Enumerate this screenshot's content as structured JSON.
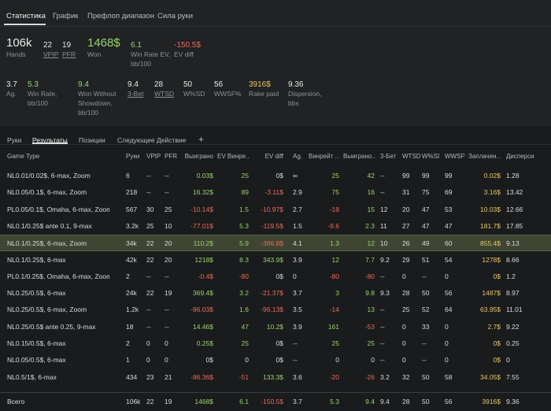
{
  "main_tabs": [
    "Статистика",
    "График",
    "Префлоп диапазон",
    "Сила руки"
  ],
  "stats_row1": {
    "hands": {
      "value": "106k",
      "label": "Hands"
    },
    "vpip": {
      "value": "22",
      "label": "VPIP"
    },
    "pfr": {
      "value": "19",
      "label": "PFR"
    },
    "won": {
      "value": "1468$",
      "label": "Won"
    },
    "wr_ev": {
      "value": "6.1",
      "label1": "Win Rate EV,",
      "label2": "bb/100"
    },
    "ev_diff": {
      "value": "-150.5$",
      "label": "EV diff"
    }
  },
  "stats_row2": {
    "ag": {
      "value": "3.7",
      "label": "Ag."
    },
    "wr": {
      "value": "5.3",
      "label1": "Win Rate,",
      "label2": "bb/100"
    },
    "wwsd": {
      "value": "9.4",
      "label1": "Won Without",
      "label2": "Showdown,",
      "label3": "bb/100"
    },
    "bet3": {
      "value": "9.4",
      "label": "3-Bet"
    },
    "wtsd": {
      "value": "28",
      "label": "WTSD"
    },
    "wsd": {
      "value": "50",
      "label": "W%SD"
    },
    "wwsf": {
      "value": "56",
      "label": "WWSF%"
    },
    "rake": {
      "value": "3916$",
      "label": "Rake paid"
    },
    "disp": {
      "value": "9.36",
      "label1": "Dispersion,",
      "label2": "bbs"
    }
  },
  "sub_tabs": [
    "Руки",
    "Результаты",
    "Позиции",
    "Следующее Действие",
    "+"
  ],
  "columns": [
    "Game Type",
    "Руки",
    "VPIP",
    "PFR",
    "Выиграно",
    "EV Винре...",
    "EV diff",
    "Ag.",
    "Винрейт ...",
    "Выиграно...",
    "3-Бет",
    "WTSD",
    "W%SD",
    "WWSF%",
    "Заплачен...",
    "Дисперси..."
  ],
  "rows": [
    [
      "NL0.01/0.02$, 6-max, Zoom",
      "6",
      "--",
      "--",
      "0.03$",
      "25",
      "0$",
      "∞",
      "25",
      "42",
      "--",
      "99",
      "99",
      "99",
      "0.02$",
      "1.28"
    ],
    [
      "NL0.05/0.1$, 6-max, Zoom",
      "218",
      "--",
      "--",
      "16.32$",
      "89",
      "-3.11$",
      "2.9",
      "75",
      "16",
      "--",
      "31",
      "75",
      "69",
      "3.16$",
      "13.42"
    ],
    [
      "PL0.05/0.1$, Omaha, 6-max, Zoom",
      "567",
      "30",
      "25",
      "-10.14$",
      "1.5",
      "-10.97$",
      "2.7",
      "-18",
      "15",
      "12",
      "20",
      "47",
      "53",
      "10.03$",
      "12.66"
    ],
    [
      "NL0.1/0.25$ ante 0.1, 9-max",
      "3.2k",
      "25",
      "10",
      "-77.01$",
      "5.3",
      "-119.5$",
      "1.5",
      "-9.6",
      "2.3",
      "11",
      "27",
      "47",
      "47",
      "181.7$",
      "17.85"
    ],
    [
      "NL0.1/0.25$, 6-max, Zoom",
      "34k",
      "22",
      "20",
      "110.2$",
      "5.9",
      "-386.8$",
      "4.1",
      "1.3",
      "12",
      "10",
      "26",
      "49",
      "60",
      "855.4$",
      "9.13"
    ],
    [
      "NL0.1/0.25$, 6-max",
      "42k",
      "22",
      "20",
      "1218$",
      "8.3",
      "343.9$",
      "3.9",
      "12",
      "7.7",
      "9.2",
      "29",
      "51",
      "54",
      "1278$",
      "8.66"
    ],
    [
      "PL0.1/0.25$, Omaha, 6-max, Zoom",
      "2",
      "--",
      "--",
      "-0.4$",
      "-80",
      "0$",
      "0",
      "-80",
      "-80",
      "--",
      "0",
      "--",
      "0",
      "0$",
      "1.2"
    ],
    [
      "NL0.25/0.5$, 6-max",
      "24k",
      "22",
      "19",
      "369.4$",
      "3.2",
      "-21.37$",
      "3.7",
      "3",
      "9.8",
      "9.3",
      "28",
      "50",
      "56",
      "1487$",
      "8.97"
    ],
    [
      "NL0.25/0.5$, 6-max, Zoom",
      "1.2k",
      "--",
      "--",
      "-86.03$",
      "1.6",
      "-96.13$",
      "3.5",
      "-14",
      "13",
      "--",
      "25",
      "52",
      "64",
      "63.95$",
      "11.01"
    ],
    [
      "NL0.25/0.5$ ante 0.25, 9-max",
      "18",
      "--",
      "--",
      "14.46$",
      "47",
      "10.2$",
      "3.9",
      "161",
      "-53",
      "--",
      "0",
      "33",
      "0",
      "2.7$",
      "9.22"
    ],
    [
      "NL0.15/0.5$, 6-max",
      "2",
      "0",
      "0",
      "0.25$",
      "25",
      "0$",
      "--",
      "25",
      "25",
      "--",
      "0",
      "--",
      "0",
      "0$",
      "0.25"
    ],
    [
      "NL0.05/0.5$, 6-max",
      "1",
      "0",
      "0",
      "0$",
      "0",
      "0$",
      "--",
      "0",
      "0",
      "--",
      "0",
      "--",
      "0",
      "0$",
      "0"
    ],
    [
      "NL0.5/1$, 6-max",
      "434",
      "23",
      "21",
      "-86.36$",
      "-51",
      "133.3$",
      "3.6",
      "-20",
      "-26",
      "3.2",
      "32",
      "50",
      "58",
      "34.05$",
      "7.55"
    ]
  ],
  "total": [
    "Всего",
    "106k",
    "22",
    "19",
    "1468$",
    "6.1",
    "-150.5$",
    "3.7",
    "5.3",
    "9.4",
    "9.4",
    "28",
    "50",
    "56",
    "3916$",
    "9.36"
  ],
  "selected_row": 4,
  "colors": {
    "positive": "#9ad36c",
    "negative": "#ef6a5a",
    "rake": "#e8c768",
    "selected_row": "#3f4532"
  }
}
